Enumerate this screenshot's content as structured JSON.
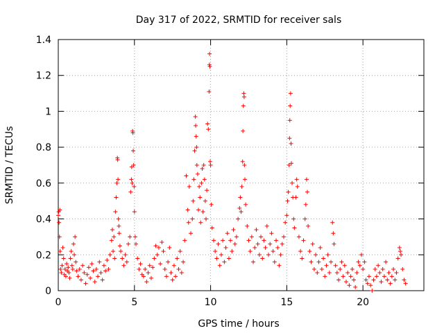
{
  "chart_data": {
    "type": "scatter",
    "title": "Day 317 of 2022, SRMTID for receiver sals",
    "xlabel": "GPS time / hours",
    "ylabel": "SRMTID / TECUs",
    "xlim": [
      0,
      24
    ],
    "ylim": [
      0,
      1.4
    ],
    "x_ticks": [
      0,
      5,
      10,
      15,
      20
    ],
    "x_tick_labels": [
      "0",
      "5",
      "10",
      "15",
      "20"
    ],
    "y_ticks": [
      0,
      0.2,
      0.4,
      0.6,
      0.8,
      1.0,
      1.2,
      1.4
    ],
    "y_tick_labels": [
      "0",
      "0.2",
      "0.4",
      "0.6",
      "0.8",
      "1",
      "1.2",
      "1.4"
    ],
    "grid": true,
    "marker": "plus",
    "color": "#ff0000",
    "series": [
      {
        "name": "SRMTID",
        "points": [
          [
            0.0,
            0.42
          ],
          [
            0.03,
            0.44
          ],
          [
            0.05,
            0.38
          ],
          [
            0.08,
            0.3
          ],
          [
            0.1,
            0.45
          ],
          [
            0.12,
            0.22
          ],
          [
            0.15,
            0.12
          ],
          [
            0.2,
            0.1
          ],
          [
            0.25,
            0.14
          ],
          [
            0.3,
            0.24
          ],
          [
            0.35,
            0.18
          ],
          [
            0.4,
            0.09
          ],
          [
            0.45,
            0.12
          ],
          [
            0.5,
            0.08
          ],
          [
            0.55,
            0.15
          ],
          [
            0.6,
            0.11
          ],
          [
            0.65,
            0.13
          ],
          [
            0.7,
            0.1
          ],
          [
            0.75,
            0.07
          ],
          [
            0.8,
            0.18
          ],
          [
            0.85,
            0.22
          ],
          [
            0.9,
            0.14
          ],
          [
            0.95,
            0.12
          ],
          [
            1.0,
            0.26
          ],
          [
            1.05,
            0.2
          ],
          [
            1.1,
            0.3
          ],
          [
            1.15,
            0.16
          ],
          [
            1.2,
            0.11
          ],
          [
            1.3,
            0.08
          ],
          [
            1.4,
            0.12
          ],
          [
            1.5,
            0.06
          ],
          [
            1.6,
            0.14
          ],
          [
            1.7,
            0.1
          ],
          [
            1.8,
            0.04
          ],
          [
            1.9,
            0.09
          ],
          [
            2.0,
            0.13
          ],
          [
            2.1,
            0.07
          ],
          [
            2.2,
            0.15
          ],
          [
            2.3,
            0.11
          ],
          [
            2.4,
            0.05
          ],
          [
            2.5,
            0.12
          ],
          [
            2.6,
            0.08
          ],
          [
            2.7,
            0.16
          ],
          [
            2.8,
            0.1
          ],
          [
            2.9,
            0.06
          ],
          [
            3.0,
            0.14
          ],
          [
            3.1,
            0.11
          ],
          [
            3.2,
            0.17
          ],
          [
            3.3,
            0.12
          ],
          [
            3.4,
            0.2
          ],
          [
            3.5,
            0.28
          ],
          [
            3.55,
            0.34
          ],
          [
            3.6,
            0.22
          ],
          [
            3.65,
            0.3
          ],
          [
            3.7,
            0.18
          ],
          [
            3.75,
            0.44
          ],
          [
            3.8,
            0.52
          ],
          [
            3.85,
            0.6
          ],
          [
            3.88,
            0.74
          ],
          [
            3.9,
            0.73
          ],
          [
            3.92,
            0.62
          ],
          [
            3.95,
            0.4
          ],
          [
            3.98,
            0.36
          ],
          [
            4.0,
            0.32
          ],
          [
            4.05,
            0.25
          ],
          [
            4.1,
            0.22
          ],
          [
            4.2,
            0.18
          ],
          [
            4.3,
            0.14
          ],
          [
            4.4,
            0.2
          ],
          [
            4.5,
            0.16
          ],
          [
            4.6,
            0.26
          ],
          [
            4.7,
            0.3
          ],
          [
            4.75,
            0.55
          ],
          [
            4.8,
            0.62
          ],
          [
            4.82,
            0.69
          ],
          [
            4.85,
            0.6
          ],
          [
            4.88,
            0.89
          ],
          [
            4.9,
            0.88
          ],
          [
            4.92,
            0.78
          ],
          [
            4.95,
            0.7
          ],
          [
            4.98,
            0.58
          ],
          [
            5.0,
            0.44
          ],
          [
            5.05,
            0.3
          ],
          [
            5.1,
            0.26
          ],
          [
            5.2,
            0.18
          ],
          [
            5.3,
            0.12
          ],
          [
            5.4,
            0.15
          ],
          [
            5.5,
            0.09
          ],
          [
            5.6,
            0.08
          ],
          [
            5.7,
            0.12
          ],
          [
            5.8,
            0.05
          ],
          [
            5.9,
            0.1
          ],
          [
            6.0,
            0.14
          ],
          [
            6.1,
            0.07
          ],
          [
            6.2,
            0.13
          ],
          [
            6.3,
            0.18
          ],
          [
            6.4,
            0.25
          ],
          [
            6.5,
            0.2
          ],
          [
            6.6,
            0.24
          ],
          [
            6.7,
            0.15
          ],
          [
            6.8,
            0.27
          ],
          [
            6.9,
            0.22
          ],
          [
            7.0,
            0.12
          ],
          [
            7.1,
            0.08
          ],
          [
            7.2,
            0.16
          ],
          [
            7.3,
            0.24
          ],
          [
            7.4,
            0.1
          ],
          [
            7.5,
            0.06
          ],
          [
            7.6,
            0.14
          ],
          [
            7.7,
            0.08
          ],
          [
            7.8,
            0.18
          ],
          [
            7.9,
            0.12
          ],
          [
            8.0,
            0.22
          ],
          [
            8.1,
            0.1
          ],
          [
            8.2,
            0.16
          ],
          [
            8.3,
            0.28
          ],
          [
            8.4,
            0.64
          ],
          [
            8.5,
            0.45
          ],
          [
            8.55,
            0.38
          ],
          [
            8.6,
            0.58
          ],
          [
            8.7,
            0.32
          ],
          [
            8.8,
            0.4
          ],
          [
            8.85,
            0.5
          ],
          [
            8.9,
            0.62
          ],
          [
            8.95,
            0.78
          ],
          [
            9.0,
            0.97
          ],
          [
            9.02,
            0.92
          ],
          [
            9.05,
            0.86
          ],
          [
            9.08,
            0.8
          ],
          [
            9.1,
            0.7
          ],
          [
            9.15,
            0.65
          ],
          [
            9.2,
            0.45
          ],
          [
            9.25,
            0.58
          ],
          [
            9.3,
            0.52
          ],
          [
            9.35,
            0.38
          ],
          [
            9.4,
            0.6
          ],
          [
            9.45,
            0.68
          ],
          [
            9.5,
            0.44
          ],
          [
            9.55,
            0.7
          ],
          [
            9.6,
            0.62
          ],
          [
            9.65,
            0.5
          ],
          [
            9.7,
            0.4
          ],
          [
            9.75,
            0.56
          ],
          [
            9.8,
            0.93
          ],
          [
            9.85,
            0.9
          ],
          [
            9.9,
            1.11
          ],
          [
            9.92,
            1.26
          ],
          [
            9.93,
            1.32
          ],
          [
            9.95,
            1.25
          ],
          [
            9.97,
            0.72
          ],
          [
            10.0,
            0.7
          ],
          [
            10.05,
            0.48
          ],
          [
            10.1,
            0.35
          ],
          [
            10.2,
            0.28
          ],
          [
            10.3,
            0.22
          ],
          [
            10.4,
            0.18
          ],
          [
            10.5,
            0.26
          ],
          [
            10.6,
            0.14
          ],
          [
            10.7,
            0.2
          ],
          [
            10.8,
            0.28
          ],
          [
            10.9,
            0.16
          ],
          [
            11.0,
            0.24
          ],
          [
            11.1,
            0.32
          ],
          [
            11.2,
            0.18
          ],
          [
            11.3,
            0.28
          ],
          [
            11.4,
            0.22
          ],
          [
            11.5,
            0.34
          ],
          [
            11.6,
            0.26
          ],
          [
            11.7,
            0.3
          ],
          [
            11.8,
            0.4
          ],
          [
            11.9,
            0.46
          ],
          [
            11.95,
            0.52
          ],
          [
            12.0,
            0.44
          ],
          [
            12.05,
            0.58
          ],
          [
            12.1,
            0.72
          ],
          [
            12.12,
            0.89
          ],
          [
            12.15,
            1.03
          ],
          [
            12.18,
            1.1
          ],
          [
            12.2,
            1.08
          ],
          [
            12.22,
            0.7
          ],
          [
            12.25,
            0.62
          ],
          [
            12.3,
            0.48
          ],
          [
            12.4,
            0.36
          ],
          [
            12.5,
            0.28
          ],
          [
            12.6,
            0.22
          ],
          [
            12.7,
            0.3
          ],
          [
            12.8,
            0.16
          ],
          [
            12.9,
            0.24
          ],
          [
            13.0,
            0.34
          ],
          [
            13.1,
            0.26
          ],
          [
            13.2,
            0.2
          ],
          [
            13.3,
            0.3
          ],
          [
            13.4,
            0.18
          ],
          [
            13.5,
            0.28
          ],
          [
            13.6,
            0.24
          ],
          [
            13.7,
            0.36
          ],
          [
            13.8,
            0.2
          ],
          [
            13.9,
            0.26
          ],
          [
            14.0,
            0.32
          ],
          [
            14.1,
            0.22
          ],
          [
            14.2,
            0.16
          ],
          [
            14.3,
            0.28
          ],
          [
            14.4,
            0.24
          ],
          [
            14.5,
            0.14
          ],
          [
            14.6,
            0.2
          ],
          [
            14.7,
            0.26
          ],
          [
            14.8,
            0.3
          ],
          [
            14.9,
            0.38
          ],
          [
            15.0,
            0.42
          ],
          [
            15.05,
            0.5
          ],
          [
            15.1,
            0.55
          ],
          [
            15.15,
            0.7
          ],
          [
            15.18,
            0.85
          ],
          [
            15.2,
            0.95
          ],
          [
            15.22,
            1.03
          ],
          [
            15.25,
            1.1
          ],
          [
            15.28,
            0.82
          ],
          [
            15.3,
            0.71
          ],
          [
            15.35,
            0.6
          ],
          [
            15.4,
            0.52
          ],
          [
            15.45,
            0.4
          ],
          [
            15.5,
            0.35
          ],
          [
            15.6,
            0.52
          ],
          [
            15.65,
            0.62
          ],
          [
            15.7,
            0.58
          ],
          [
            15.8,
            0.3
          ],
          [
            15.9,
            0.22
          ],
          [
            16.0,
            0.18
          ],
          [
            16.1,
            0.28
          ],
          [
            16.2,
            0.4
          ],
          [
            16.25,
            0.48
          ],
          [
            16.3,
            0.62
          ],
          [
            16.35,
            0.55
          ],
          [
            16.4,
            0.36
          ],
          [
            16.5,
            0.22
          ],
          [
            16.6,
            0.16
          ],
          [
            16.7,
            0.26
          ],
          [
            16.8,
            0.12
          ],
          [
            16.9,
            0.2
          ],
          [
            17.0,
            0.1
          ],
          [
            17.1,
            0.16
          ],
          [
            17.2,
            0.24
          ],
          [
            17.3,
            0.12
          ],
          [
            17.4,
            0.18
          ],
          [
            17.5,
            0.08
          ],
          [
            17.6,
            0.14
          ],
          [
            17.7,
            0.2
          ],
          [
            17.8,
            0.1
          ],
          [
            17.9,
            0.16
          ],
          [
            18.0,
            0.38
          ],
          [
            18.05,
            0.32
          ],
          [
            18.1,
            0.26
          ],
          [
            18.2,
            0.14
          ],
          [
            18.3,
            0.1
          ],
          [
            18.4,
            0.06
          ],
          [
            18.5,
            0.12
          ],
          [
            18.6,
            0.16
          ],
          [
            18.7,
            0.08
          ],
          [
            18.8,
            0.14
          ],
          [
            18.9,
            0.05
          ],
          [
            19.0,
            0.1
          ],
          [
            19.1,
            0.03
          ],
          [
            19.2,
            0.08
          ],
          [
            19.3,
            0.12
          ],
          [
            19.4,
            0.06
          ],
          [
            19.5,
            0.02
          ],
          [
            19.6,
            0.1
          ],
          [
            19.7,
            0.16
          ],
          [
            19.8,
            0.14
          ],
          [
            19.9,
            0.2
          ],
          [
            20.0,
            0.12
          ],
          [
            20.1,
            0.16
          ],
          [
            20.2,
            0.06
          ],
          [
            20.3,
            0.04
          ],
          [
            20.4,
            0.08
          ],
          [
            20.5,
            0.03
          ],
          [
            20.6,
            0.0
          ],
          [
            20.7,
            0.06
          ],
          [
            20.8,
            0.12
          ],
          [
            20.9,
            0.08
          ],
          [
            21.0,
            0.14
          ],
          [
            21.1,
            0.1
          ],
          [
            21.2,
            0.05
          ],
          [
            21.3,
            0.12
          ],
          [
            21.4,
            0.08
          ],
          [
            21.5,
            0.16
          ],
          [
            21.6,
            0.06
          ],
          [
            21.7,
            0.1
          ],
          [
            21.8,
            0.04
          ],
          [
            21.9,
            0.08
          ],
          [
            22.0,
            0.12
          ],
          [
            22.1,
            0.06
          ],
          [
            22.2,
            0.1
          ],
          [
            22.3,
            0.18
          ],
          [
            22.4,
            0.24
          ],
          [
            22.45,
            0.22
          ],
          [
            22.5,
            0.2
          ],
          [
            22.6,
            0.12
          ],
          [
            22.7,
            0.06
          ],
          [
            22.8,
            0.04
          ]
        ]
      }
    ]
  }
}
